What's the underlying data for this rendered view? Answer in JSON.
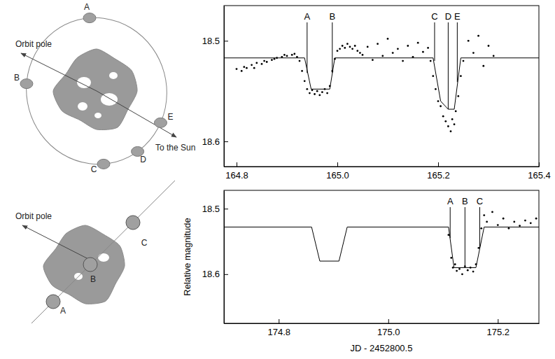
{
  "chart_data": [
    {
      "type": "scatter",
      "xlim": [
        164.775,
        165.4
      ],
      "xticks": [
        164.8,
        {
          "value": 165,
          "label": "165.0"
        },
        165.2,
        165.4
      ],
      "ylim": [
        18.625,
        18.465
      ],
      "yticks": [
        18.5,
        18.6
      ],
      "series": [
        {
          "type": "scatter",
          "color": "#000000",
          "marker": "dot",
          "x": [
            164.8,
            164.81,
            164.815,
            164.82,
            164.83,
            164.835,
            164.84,
            164.85,
            164.855,
            164.86,
            164.87,
            164.875,
            164.88,
            164.89,
            164.895,
            164.9,
            164.91,
            164.915,
            164.92,
            164.925,
            164.93,
            164.935,
            164.94,
            164.945,
            164.95,
            164.955,
            164.96,
            164.965,
            164.97,
            164.975,
            164.98,
            164.985,
            164.99,
            164.995,
            165.0,
            165.005,
            165.01,
            165.015,
            165.02,
            165.025,
            165.03,
            165.035,
            165.04,
            165.045,
            165.05,
            165.06,
            165.07,
            165.08,
            165.09,
            165.1,
            165.11,
            165.12,
            165.13,
            165.14,
            165.15,
            165.16,
            165.17,
            165.18,
            165.185,
            165.19,
            165.195,
            165.2,
            165.205,
            165.21,
            165.215,
            165.22,
            165.225,
            165.228,
            165.232,
            165.235,
            165.24,
            165.245,
            165.25,
            165.26,
            165.27,
            165.28,
            165.29,
            165.3,
            165.31
          ],
          "values": [
            18.528,
            18.53,
            18.526,
            18.527,
            18.524,
            18.527,
            18.522,
            18.523,
            18.52,
            18.521,
            18.519,
            18.518,
            18.517,
            18.516,
            18.514,
            18.515,
            18.514,
            18.513,
            18.516,
            18.52,
            18.53,
            18.54,
            18.548,
            18.552,
            18.549,
            18.553,
            18.55,
            18.554,
            18.551,
            18.548,
            18.552,
            18.545,
            18.53,
            18.518,
            18.51,
            18.508,
            18.505,
            18.507,
            18.503,
            18.506,
            18.508,
            18.505,
            18.51,
            18.512,
            18.514,
            18.506,
            18.519,
            18.503,
            18.515,
            18.498,
            18.512,
            18.508,
            18.52,
            18.505,
            18.516,
            18.502,
            18.511,
            18.507,
            18.52,
            18.535,
            18.548,
            18.56,
            18.565,
            18.575,
            18.58,
            18.585,
            18.59,
            18.578,
            18.583,
            18.57,
            18.555,
            18.535,
            18.52,
            18.5,
            18.512,
            18.495,
            18.525,
            18.505,
            18.515
          ]
        },
        {
          "type": "line",
          "color": "#000000",
          "line_style": "solid",
          "x": [
            164.775,
            164.935,
            164.948,
            164.985,
            164.995,
            165.19,
            165.205,
            165.22,
            165.232,
            165.245,
            165.4
          ],
          "values": [
            18.517,
            18.517,
            18.548,
            18.548,
            18.517,
            18.517,
            18.56,
            18.568,
            18.568,
            18.517,
            18.517
          ]
        }
      ],
      "annotations": [
        {
          "text": "A",
          "x": 164.94,
          "y": 18.532
        },
        {
          "text": "B",
          "x": 164.99,
          "y": 18.532
        },
        {
          "text": "C",
          "x": 165.193,
          "y": 18.52
        },
        {
          "text": "D",
          "x": 165.22,
          "y": 18.568
        },
        {
          "text": "E",
          "x": 165.238,
          "y": 18.541
        }
      ]
    },
    {
      "type": "scatter",
      "x_label": "JD - 2452800.5",
      "y_label": "Relative magnitude",
      "xlim": [
        174.7,
        175.275
      ],
      "xticks": [
        174.8,
        {
          "value": 175,
          "label": "175.0"
        },
        175.2
      ],
      "ylim": [
        18.675,
        18.472
      ],
      "yticks": [
        18.5,
        18.6
      ],
      "series": [
        {
          "type": "scatter",
          "color": "#000000",
          "marker": "dot",
          "x": [
            175.11,
            175.115,
            175.118,
            175.122,
            175.125,
            175.13,
            175.135,
            175.14,
            175.145,
            175.15,
            175.155,
            175.16,
            175.165,
            175.17,
            175.175,
            175.18,
            175.19,
            175.2,
            175.21,
            175.22,
            175.23,
            175.24,
            175.25,
            175.26,
            175.27,
            175.28,
            175.29
          ],
          "values": [
            18.54,
            18.575,
            18.59,
            18.585,
            18.595,
            18.592,
            18.6,
            18.588,
            18.594,
            18.59,
            18.596,
            18.585,
            18.56,
            18.53,
            18.51,
            18.52,
            18.505,
            18.525,
            18.515,
            18.53,
            18.52,
            18.526,
            18.518,
            18.522,
            18.515,
            18.528,
            18.52
          ]
        },
        {
          "type": "line",
          "color": "#000000",
          "line_style": "solid",
          "x": [
            174.7,
            174.86,
            174.875,
            174.91,
            174.925,
            175.11,
            175.12,
            175.16,
            175.175,
            175.275
          ],
          "values": [
            18.528,
            18.528,
            18.58,
            18.58,
            18.528,
            18.528,
            18.59,
            18.59,
            18.528,
            18.528
          ]
        }
      ],
      "annotations": [
        {
          "text": "A",
          "x": 175.113,
          "y": 18.545
        },
        {
          "text": "B",
          "x": 175.14,
          "y": 18.59
        },
        {
          "text": "C",
          "x": 175.167,
          "y": 18.56
        }
      ]
    }
  ],
  "diagrams": [
    {
      "pole_label": "Orbit pole",
      "sun_label": "To the Sun",
      "moon_labels": [
        "A",
        "B",
        "C",
        "D",
        "E"
      ]
    },
    {
      "pole_label": "Orbit pole",
      "moon_labels": [
        "A",
        "B",
        "C"
      ]
    }
  ]
}
